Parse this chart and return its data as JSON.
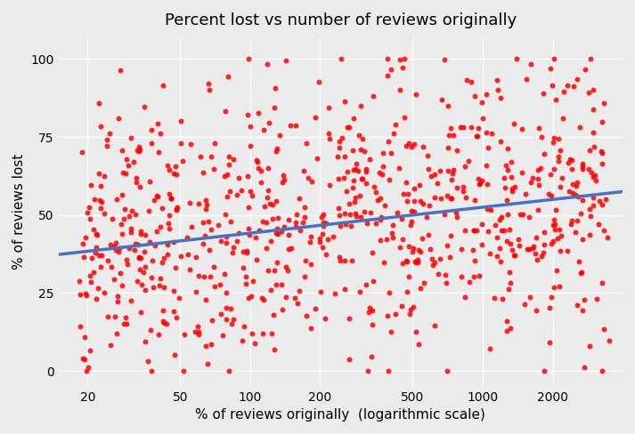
{
  "title": "Percent lost vs number of reviews originally",
  "xlabel": "% of reviews originally  (logarithmic scale)",
  "ylabel": "% of reviews lost",
  "scatter_color": "#FF0000",
  "line_color": "#4472C4",
  "background_color": "#EBEBEB",
  "grid_color": "#FFFFFF",
  "xticks": [
    20,
    50,
    100,
    200,
    500,
    1000,
    2000
  ],
  "yticks": [
    0,
    25,
    50,
    75,
    100
  ],
  "point_size": 18,
  "point_alpha": 0.85,
  "line_x0": 15,
  "line_x1": 4000,
  "line_y0": 38.0,
  "line_y1": 57.0,
  "n_points": 800,
  "seed": 42,
  "xlim": [
    15,
    4000
  ],
  "ylim": [
    -5,
    107
  ],
  "log_x_min": 1.255,
  "log_x_max": 3.544
}
